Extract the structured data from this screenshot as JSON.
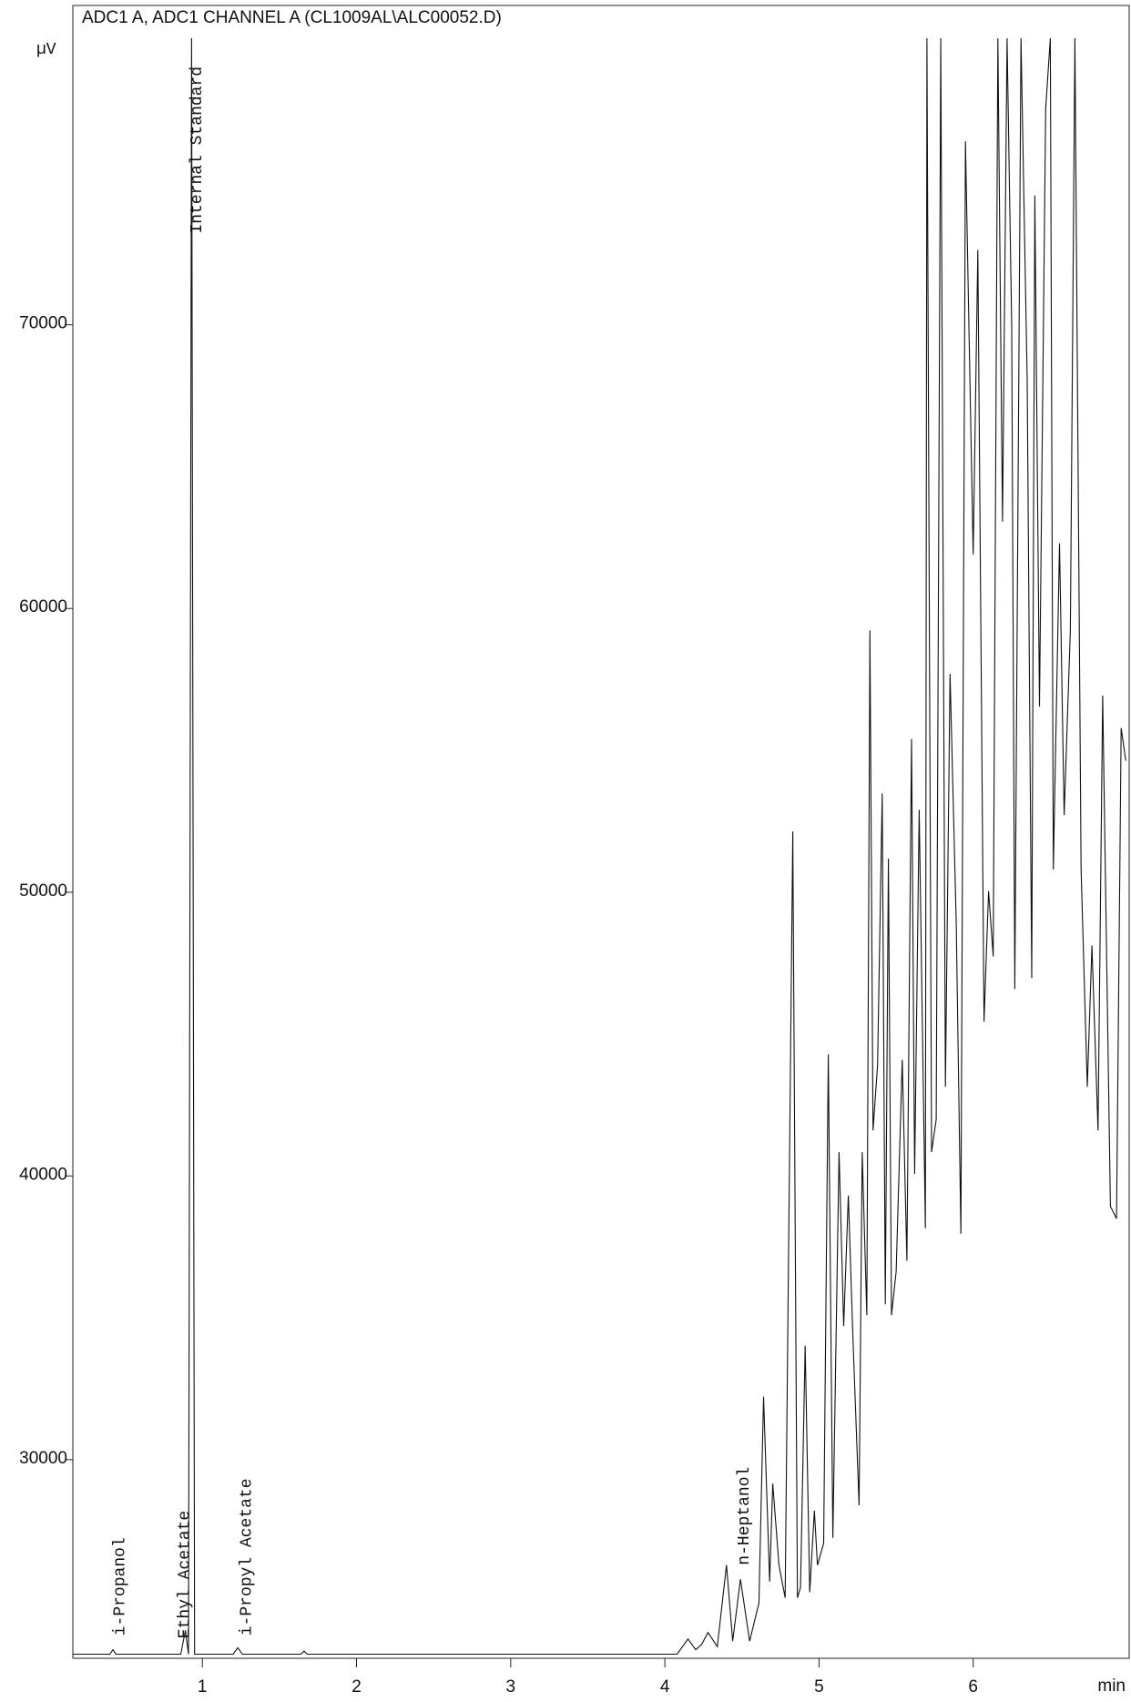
{
  "chart_data": {
    "type": "line",
    "title": "ADC1 A, ADC1 CHANNEL A (CL1009AL\\ALC00052.D)",
    "y_label": "µV",
    "x_label": "min",
    "color": "#111111",
    "x": [
      0.16,
      0.4,
      0.42,
      0.44,
      0.86,
      0.89,
      0.91,
      0.93,
      0.95,
      1.2,
      1.23,
      1.26,
      1.64,
      1.66,
      1.68,
      4.08,
      4.15,
      4.2,
      4.24,
      4.28,
      4.34,
      4.4,
      4.44,
      4.49,
      4.55,
      4.61,
      4.64,
      4.68,
      4.7,
      4.74,
      4.78,
      4.83,
      4.86,
      4.88,
      4.91,
      4.94,
      4.97,
      4.99,
      5.03,
      5.06,
      5.09,
      5.13,
      5.16,
      5.19,
      5.22,
      5.26,
      5.28,
      5.31,
      5.33,
      5.35,
      5.38,
      5.41,
      5.43,
      5.45,
      5.47,
      5.5,
      5.54,
      5.57,
      5.6,
      5.62,
      5.65,
      5.69,
      5.7,
      5.73,
      5.76,
      5.79,
      5.82,
      5.85,
      5.89,
      5.92,
      5.95,
      6.0,
      6.03,
      6.07,
      6.1,
      6.13,
      6.16,
      6.19,
      6.22,
      6.25,
      6.27,
      6.31,
      6.35,
      6.38,
      6.4,
      6.43,
      6.47,
      6.5,
      6.52,
      6.56,
      6.59,
      6.63,
      6.66,
      6.7,
      6.74,
      6.77,
      6.81,
      6.84,
      6.89,
      6.93,
      6.96,
      6.99
    ],
    "values": [
      23143,
      23143,
      23300,
      23143,
      23143,
      23985,
      23143,
      80100,
      23143,
      23143,
      23373,
      23143,
      23143,
      23250,
      23143,
      23143,
      23679,
      23300,
      23500,
      23909,
      23411,
      26284,
      23602,
      25786,
      23602,
      24943,
      32222,
      25709,
      29157,
      26284,
      25135,
      52143,
      25135,
      25500,
      34023,
      25326,
      28199,
      26284,
      27050,
      44290,
      27242,
      40842,
      34712,
      39309,
      34329,
      28391,
      40842,
      35095,
      59231,
      41608,
      43907,
      53484,
      35478,
      51185,
      35095,
      36628,
      44098,
      37011,
      55400,
      40076,
      52909,
      38160,
      80100,
      40842,
      41991,
      80100,
      43140,
      57698,
      48887,
      37968,
      76470,
      61912,
      72639,
      45439,
      50036,
      47738,
      80100,
      63062,
      80100,
      69957,
      46588,
      80100,
      68042,
      46971,
      74555,
      56549,
      77619,
      80100,
      50802,
      62295,
      52718,
      59231,
      80100,
      50802,
      43140,
      48121,
      41608,
      56932,
      38926,
      38500,
      55783,
      54633
    ],
    "xlim": [
      0.16,
      7.0
    ],
    "ylim": [
      23000,
      80100
    ],
    "xticks": [
      1,
      2,
      3,
      4,
      5,
      6
    ],
    "yticks": [
      30000,
      40000,
      50000,
      60000,
      70000
    ],
    "annotations": [
      {
        "text": "i-Propanol",
        "x": 0.43,
        "y": 23794
      },
      {
        "text": "Ethyl Acetate",
        "x": 0.85,
        "y": 23700
      },
      {
        "text": "Internal Standard",
        "x": 0.93,
        "y": 73214
      },
      {
        "text": "i-Propyl Acetate",
        "x": 1.25,
        "y": 23794
      },
      {
        "text": "n-Heptanol",
        "x": 4.48,
        "y": 26284
      }
    ]
  }
}
